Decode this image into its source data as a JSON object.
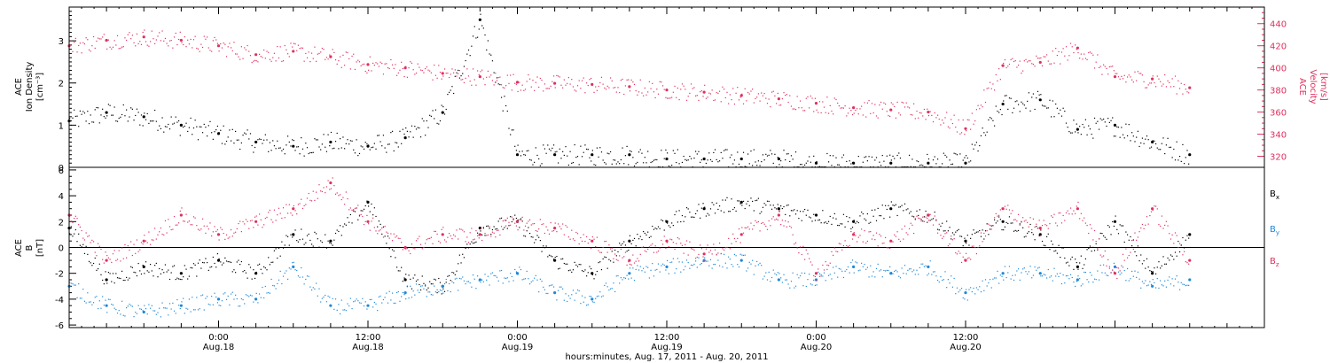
{
  "chart_data": [
    {
      "type": "scatter",
      "ylabel_lines": [
        "ACE",
        "Ion Density",
        "[cm⁻³]"
      ],
      "ylim": [
        0,
        3.8
      ],
      "yticks": [
        0,
        1,
        2,
        3
      ],
      "y2label_lines": [
        "ACE",
        "Velocity",
        "[km/s]"
      ],
      "y2lim": [
        310,
        455
      ],
      "y2ticks": [
        320,
        340,
        360,
        380,
        400,
        420,
        440
      ],
      "colors": {
        "density": "#000000",
        "velocity": "#e0305f"
      },
      "series": [
        {
          "key": "density",
          "axis": "left",
          "x": [
            0,
            3,
            6,
            9,
            12,
            15,
            18,
            21,
            24,
            27,
            30,
            33,
            36,
            39,
            42,
            45,
            48,
            51,
            54,
            57,
            60,
            63,
            66,
            69,
            72,
            75,
            78,
            81,
            84,
            87,
            90
          ],
          "y": [
            1.1,
            1.3,
            1.2,
            1.0,
            0.8,
            0.6,
            0.5,
            0.6,
            0.5,
            0.7,
            1.3,
            3.5,
            0.3,
            0.3,
            0.3,
            0.3,
            0.2,
            0.2,
            0.2,
            0.2,
            0.1,
            0.1,
            0.1,
            0.1,
            0.1,
            1.5,
            1.6,
            0.9,
            1.0,
            0.6,
            0.3
          ]
        },
        {
          "key": "velocity",
          "axis": "right",
          "x": [
            0,
            3,
            6,
            9,
            12,
            15,
            18,
            21,
            24,
            27,
            30,
            33,
            36,
            39,
            42,
            45,
            48,
            51,
            54,
            57,
            60,
            63,
            66,
            69,
            72,
            75,
            78,
            81,
            84,
            87,
            90
          ],
          "y": [
            420,
            425,
            428,
            425,
            420,
            412,
            415,
            410,
            403,
            400,
            395,
            392,
            387,
            386,
            385,
            383,
            380,
            378,
            375,
            372,
            368,
            364,
            362,
            360,
            345,
            402,
            405,
            418,
            392,
            390,
            382
          ]
        }
      ]
    },
    {
      "type": "scatter",
      "ylabel_lines": [
        "ACE",
        "B",
        "[nT]"
      ],
      "ylim": [
        -6.2,
        6.2
      ],
      "yticks": [
        -6,
        -4,
        -2,
        0,
        2,
        4,
        6
      ],
      "ytick_labels": [
        "-6",
        "-4",
        "-2",
        "0",
        "2",
        "4",
        "6"
      ],
      "zero_line": true,
      "x_tick_labels": [
        {
          "x": 12,
          "time": "0:00",
          "date": "Aug.18"
        },
        {
          "x": 24,
          "time": "12:00",
          "date": "Aug.18"
        },
        {
          "x": 36,
          "time": "0:00",
          "date": "Aug.19"
        },
        {
          "x": 48,
          "time": "12:00",
          "date": "Aug.19"
        },
        {
          "x": 60,
          "time": "0:00",
          "date": "Aug.20"
        },
        {
          "x": 72,
          "time": "12:00",
          "date": "Aug.20"
        }
      ],
      "xlim": [
        0,
        96
      ],
      "data_end": 90,
      "xlabel": "hours:minutes, Aug. 17, 2011 - Aug. 20, 2011",
      "series": [
        {
          "name": "Bx",
          "sub": "x",
          "color": "#000000",
          "x": [
            0,
            3,
            6,
            9,
            12,
            15,
            18,
            21,
            24,
            27,
            30,
            33,
            36,
            39,
            42,
            45,
            48,
            51,
            54,
            57,
            60,
            63,
            66,
            69,
            72,
            75,
            78,
            81,
            84,
            87,
            90
          ],
          "y": [
            1.5,
            -2.5,
            -1.5,
            -2.0,
            -1.0,
            -2.0,
            1.0,
            0.5,
            3.5,
            -2.5,
            -3.0,
            1.5,
            2.0,
            -1.0,
            -2.0,
            0.5,
            2.0,
            3.0,
            3.5,
            3.0,
            2.5,
            2.0,
            3.0,
            2.5,
            0.5,
            2.0,
            1.0,
            -1.5,
            2.0,
            -2.0,
            1.0
          ]
        },
        {
          "name": "By",
          "sub": "y",
          "color": "#1e88d9",
          "x": [
            0,
            3,
            6,
            9,
            12,
            15,
            18,
            21,
            24,
            27,
            30,
            33,
            36,
            39,
            42,
            45,
            48,
            51,
            54,
            57,
            60,
            63,
            66,
            69,
            72,
            75,
            78,
            81,
            84,
            87,
            90
          ],
          "y": [
            -3.0,
            -4.5,
            -5.0,
            -4.5,
            -4.0,
            -4.0,
            -1.5,
            -4.5,
            -4.5,
            -3.5,
            -3.0,
            -2.5,
            -2.0,
            -3.5,
            -4.0,
            -2.0,
            -1.5,
            -1.0,
            -1.0,
            -2.5,
            -2.5,
            -1.5,
            -2.0,
            -1.5,
            -3.5,
            -2.0,
            -2.0,
            -2.5,
            -1.5,
            -3.0,
            -2.5
          ]
        },
        {
          "name": "Bz",
          "sub": "z",
          "color": "#e0305f",
          "x": [
            0,
            3,
            6,
            9,
            12,
            15,
            18,
            21,
            24,
            27,
            30,
            33,
            36,
            39,
            42,
            45,
            48,
            51,
            54,
            57,
            60,
            63,
            66,
            69,
            72,
            75,
            78,
            81,
            84,
            87,
            90
          ],
          "y": [
            2.5,
            -1.0,
            0.5,
            2.5,
            1.0,
            2.0,
            3.0,
            5.0,
            2.0,
            0.0,
            1.0,
            1.0,
            2.0,
            1.5,
            0.5,
            -1.0,
            0.5,
            -0.5,
            1.0,
            2.5,
            -2.0,
            1.0,
            0.5,
            2.5,
            -1.0,
            3.0,
            1.5,
            3.0,
            -2.0,
            3.0,
            -1.0
          ]
        }
      ]
    }
  ]
}
